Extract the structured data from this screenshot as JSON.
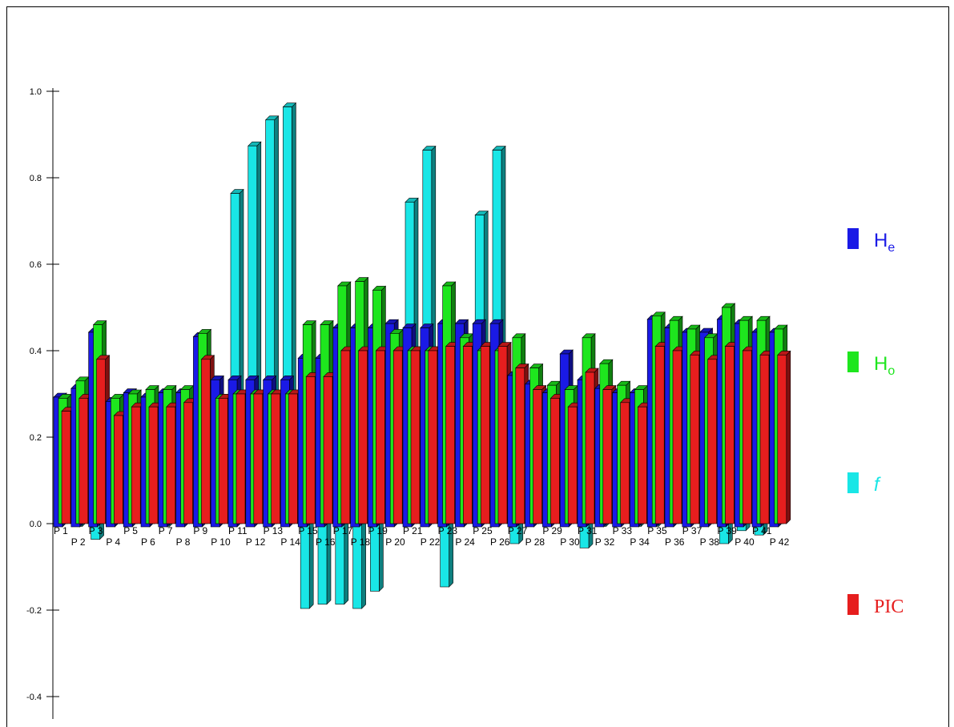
{
  "chart_data": {
    "type": "bar",
    "style": "3d-clustered",
    "categories": [
      "P 1",
      "P 2",
      "P 3",
      "P 4",
      "P 5",
      "P 6",
      "P 7",
      "P 8",
      "P 9",
      "P 10",
      "P 11",
      "P 12",
      "P 13",
      "P 14",
      "P 15",
      "P 16",
      "P 17",
      "P 18",
      "P 19",
      "P 20",
      "P 21",
      "P 22",
      "P 23",
      "P 24",
      "P 25",
      "P 26",
      "P 27",
      "P 28",
      "P 29",
      "P 30",
      "P 31",
      "P 32",
      "P 33",
      "P 34",
      "P 35",
      "P 36",
      "P 37",
      "P 38",
      "P 39",
      "P 40",
      "P 41",
      "P 42"
    ],
    "series": [
      {
        "name": "He",
        "name_main": "H",
        "name_sub": "e",
        "color": "#1a1ae6",
        "values": [
          0.3,
          0.32,
          0.45,
          0.29,
          0.31,
          0.3,
          0.31,
          0.31,
          0.44,
          0.34,
          0.34,
          0.34,
          0.34,
          0.34,
          0.39,
          0.39,
          0.46,
          0.46,
          0.46,
          0.47,
          0.46,
          0.46,
          0.47,
          0.47,
          0.47,
          0.47,
          0.35,
          0.33,
          0.31,
          0.4,
          0.34,
          0.32,
          0.31,
          0.31,
          0.48,
          0.46,
          0.45,
          0.45,
          0.48,
          0.47,
          0.45,
          0.45
        ]
      },
      {
        "name": "Ho",
        "name_main": "H",
        "name_sub": "o",
        "color": "#1ee61e",
        "values": [
          0.29,
          0.33,
          0.46,
          0.29,
          0.3,
          0.31,
          0.31,
          0.31,
          0.44,
          0.29,
          0.3,
          0.3,
          0.3,
          0.3,
          0.46,
          0.46,
          0.55,
          0.56,
          0.54,
          0.44,
          0.4,
          0.4,
          0.55,
          0.43,
          0.4,
          0.4,
          0.43,
          0.36,
          0.32,
          0.31,
          0.43,
          0.37,
          0.32,
          0.31,
          0.48,
          0.47,
          0.45,
          0.43,
          0.5,
          0.47,
          0.47,
          0.45
        ]
      },
      {
        "name": "f",
        "color": "#19e6e6",
        "values": [
          0.04,
          -0.01,
          -0.04,
          0.0,
          0.02,
          0.0,
          -0.01,
          0.01,
          0.0,
          0.17,
          0.76,
          0.87,
          0.93,
          0.96,
          -0.2,
          -0.19,
          -0.19,
          -0.2,
          -0.16,
          0.25,
          0.74,
          0.86,
          -0.15,
          0.26,
          0.71,
          0.86,
          -0.05,
          0.0,
          0.01,
          0.01,
          -0.06,
          -0.01,
          0.0,
          -0.01,
          -0.01,
          0.0,
          0.0,
          0.03,
          -0.05,
          -0.02,
          -0.03,
          0.01
        ]
      },
      {
        "name": "PIC",
        "color": "#e61e1e",
        "values": [
          0.26,
          0.29,
          0.38,
          0.25,
          0.27,
          0.27,
          0.27,
          0.28,
          0.38,
          0.29,
          0.3,
          0.3,
          0.3,
          0.3,
          0.34,
          0.34,
          0.4,
          0.4,
          0.4,
          0.4,
          0.4,
          0.4,
          0.41,
          0.41,
          0.41,
          0.41,
          0.36,
          0.31,
          0.29,
          0.27,
          0.35,
          0.31,
          0.28,
          0.27,
          0.41,
          0.4,
          0.39,
          0.38,
          0.41,
          0.4,
          0.39,
          0.39
        ]
      }
    ],
    "ylim": [
      -0.4,
      1.0
    ],
    "yticks": [
      -0.4,
      -0.2,
      0.0,
      0.2,
      0.4,
      0.6,
      0.8,
      1.0
    ],
    "ytick_labels": [
      "-0.4",
      "-0.2",
      "0.0",
      "0.2",
      "0.4",
      "0.6",
      "0.8",
      "1.0"
    ],
    "grid": false,
    "legend_position": "right"
  }
}
